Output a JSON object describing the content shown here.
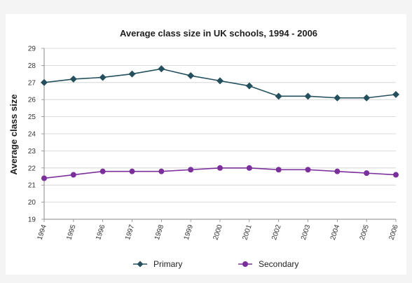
{
  "chart_data": {
    "type": "line",
    "title": "Average class size in UK schools, 1994 - 2006",
    "xlabel": "",
    "ylabel": "Average class size",
    "x": [
      "1994",
      "1995",
      "1996",
      "1997",
      "1998",
      "1999",
      "2000",
      "2001",
      "2002",
      "2003",
      "2004",
      "2005",
      "2006"
    ],
    "ylim": [
      19,
      29
    ],
    "yticks": [
      "19",
      "20",
      "21",
      "22",
      "23",
      "24",
      "25",
      "26",
      "27",
      "28",
      "29"
    ],
    "grid": "horizontal",
    "legend": "bottom",
    "series": [
      {
        "name": "Primary",
        "color": "#24505e",
        "marker": "diamond",
        "values": [
          27.0,
          27.2,
          27.3,
          27.5,
          27.8,
          27.4,
          27.1,
          26.8,
          26.2,
          26.2,
          26.1,
          26.1,
          26.3
        ]
      },
      {
        "name": "Secondary",
        "color": "#7b2f9b",
        "marker": "circle",
        "values": [
          21.4,
          21.6,
          21.8,
          21.8,
          21.8,
          21.9,
          22.0,
          22.0,
          21.9,
          21.9,
          21.8,
          21.7,
          21.6
        ]
      }
    ]
  }
}
